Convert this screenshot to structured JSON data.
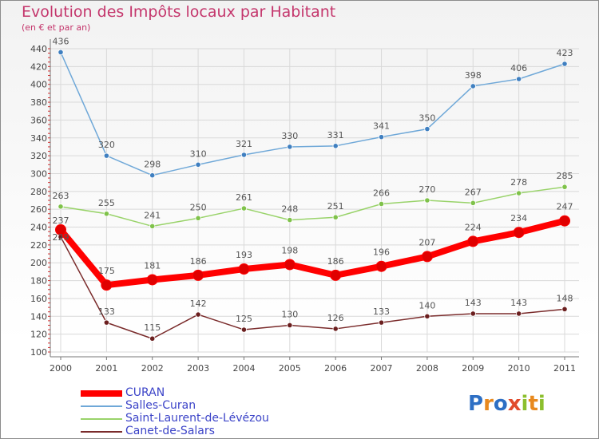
{
  "header": {
    "title": "Evolution des Impôts locaux par Habitant",
    "subtitle": "(en € et par an)"
  },
  "logo": {
    "text": "Proxiti"
  },
  "chart_data": {
    "type": "line",
    "x": [
      "2000",
      "2001",
      "2002",
      "2003",
      "2004",
      "2005",
      "2006",
      "2007",
      "2008",
      "2009",
      "2010",
      "2011"
    ],
    "ylim": [
      100,
      440
    ],
    "yticks": [
      "100",
      "120",
      "140",
      "160",
      "180",
      "200",
      "220",
      "240",
      "260",
      "280",
      "300",
      "320",
      "340",
      "360",
      "380",
      "400",
      "420",
      "440"
    ],
    "grid": true,
    "legend_position": "bottom-left",
    "series": [
      {
        "name": "CURAN",
        "values": [
          237,
          175,
          181,
          186,
          193,
          198,
          186,
          196,
          207,
          224,
          234,
          247
        ],
        "color": "#ff0000",
        "point_color": "#e00000",
        "label_color": "#555555",
        "thick": true
      },
      {
        "name": "Salles-Curan",
        "values": [
          436,
          320,
          298,
          310,
          321,
          330,
          331,
          341,
          350,
          398,
          406,
          423
        ],
        "color": "#6fa8d8",
        "point_color": "#3f7fc0",
        "label_color": "#555555",
        "thick": false
      },
      {
        "name": "Saint-Laurent-de-Lévézou",
        "values": [
          263,
          255,
          241,
          250,
          261,
          248,
          251,
          266,
          270,
          267,
          278,
          285
        ],
        "color": "#99d36a",
        "point_color": "#7fc24a",
        "label_color": "#555555",
        "thick": false
      },
      {
        "name": "Canet-de-Salars",
        "values": [
          229,
          133,
          115,
          142,
          125,
          130,
          126,
          133,
          140,
          143,
          143,
          148
        ],
        "color": "#7a2b2b",
        "point_color": "#6b1f1f",
        "label_color": "#555555",
        "thick": false
      }
    ],
    "value_labels": {
      "CURAN": [
        "237",
        "175",
        "181",
        "186",
        "193",
        "198",
        "186",
        "196",
        "207",
        "224",
        "234",
        "247"
      ],
      "Salles-Curan": [
        "436",
        "320",
        "298",
        "310",
        "321",
        "330",
        "331",
        "341",
        "350",
        "398",
        "406",
        "423"
      ],
      "Saint-Laurent-de-Lévézou": [
        "263",
        "255",
        "241",
        "250",
        "261",
        "248",
        "251",
        "266",
        "270",
        "267",
        "278",
        "285"
      ],
      "Canet-de-Salars": [
        "229",
        "133",
        "115",
        "142",
        "125",
        "130",
        "126",
        "133",
        "140",
        "143",
        "143",
        "148"
      ]
    }
  }
}
